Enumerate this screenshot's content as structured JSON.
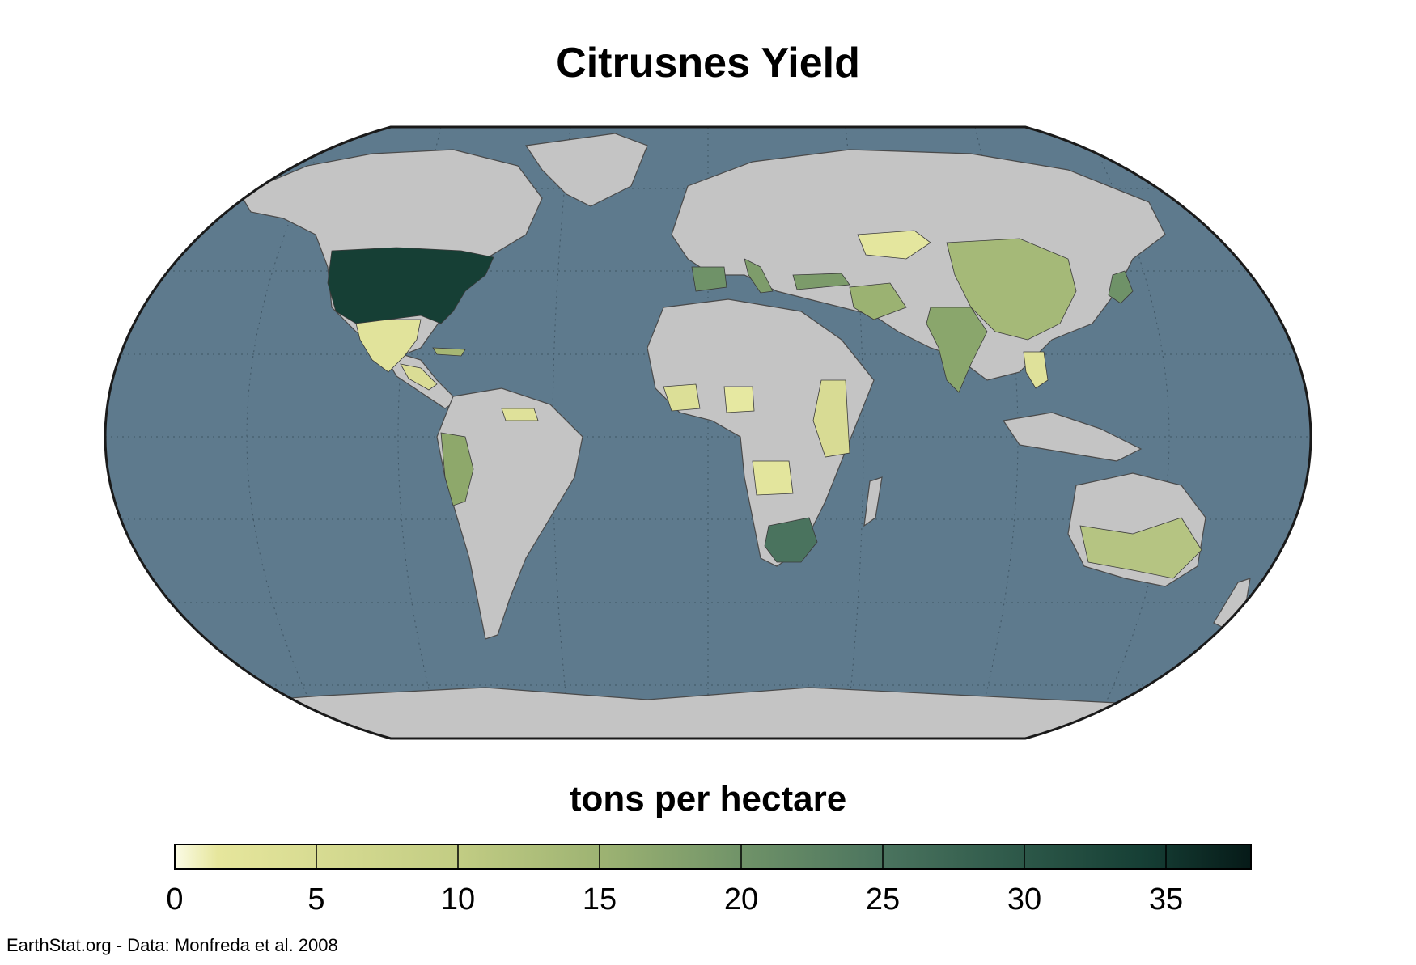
{
  "title": "Citrusnes Yield",
  "legend": {
    "title": "tons per hectare",
    "min": 0,
    "max": 38,
    "ticks": [
      "0",
      "5",
      "10",
      "15",
      "20",
      "25",
      "30",
      "35"
    ],
    "tick_values": [
      0,
      5,
      10,
      15,
      20,
      25,
      30,
      35
    ],
    "colors": [
      "#fbfbe6",
      "#e6e69c",
      "#c3cd84",
      "#9cb272",
      "#6f9268",
      "#4a735e",
      "#2c5748",
      "#163f35",
      "#0b2a25",
      "#061a18"
    ]
  },
  "credit": "EarthStat.org - Data: Monfreda et al. 2008",
  "map": {
    "projection": "Robinson",
    "ocean_color": "#5e7a8d",
    "land_color": "#c4c4c4",
    "no_data_color": "#c4c4c4"
  },
  "chart_data": {
    "type": "heatmap",
    "title": "Citrusnes Yield",
    "colorbar_label": "tons per hectare",
    "range": [
      0,
      38
    ],
    "regions": [
      {
        "name": "United States",
        "value": 33
      },
      {
        "name": "Mexico",
        "value": 5
      },
      {
        "name": "Central America",
        "value": 6
      },
      {
        "name": "Cuba",
        "value": 9
      },
      {
        "name": "Venezuela / Guyana",
        "value": 5
      },
      {
        "name": "Peru",
        "value": 13
      },
      {
        "name": "Spain",
        "value": 17
      },
      {
        "name": "Italy",
        "value": 16
      },
      {
        "name": "Turkey",
        "value": 15
      },
      {
        "name": "Iran",
        "value": 12
      },
      {
        "name": "Kazakhstan",
        "value": 4
      },
      {
        "name": "China",
        "value": 11
      },
      {
        "name": "India",
        "value": 13
      },
      {
        "name": "Japan",
        "value": 16
      },
      {
        "name": "Thailand",
        "value": 5
      },
      {
        "name": "West Africa",
        "value": 5
      },
      {
        "name": "Nigeria",
        "value": 3
      },
      {
        "name": "East Africa",
        "value": 4
      },
      {
        "name": "Angola",
        "value": 3
      },
      {
        "name": "South Africa",
        "value": 20
      },
      {
        "name": "Australia",
        "value": 8
      }
    ]
  }
}
